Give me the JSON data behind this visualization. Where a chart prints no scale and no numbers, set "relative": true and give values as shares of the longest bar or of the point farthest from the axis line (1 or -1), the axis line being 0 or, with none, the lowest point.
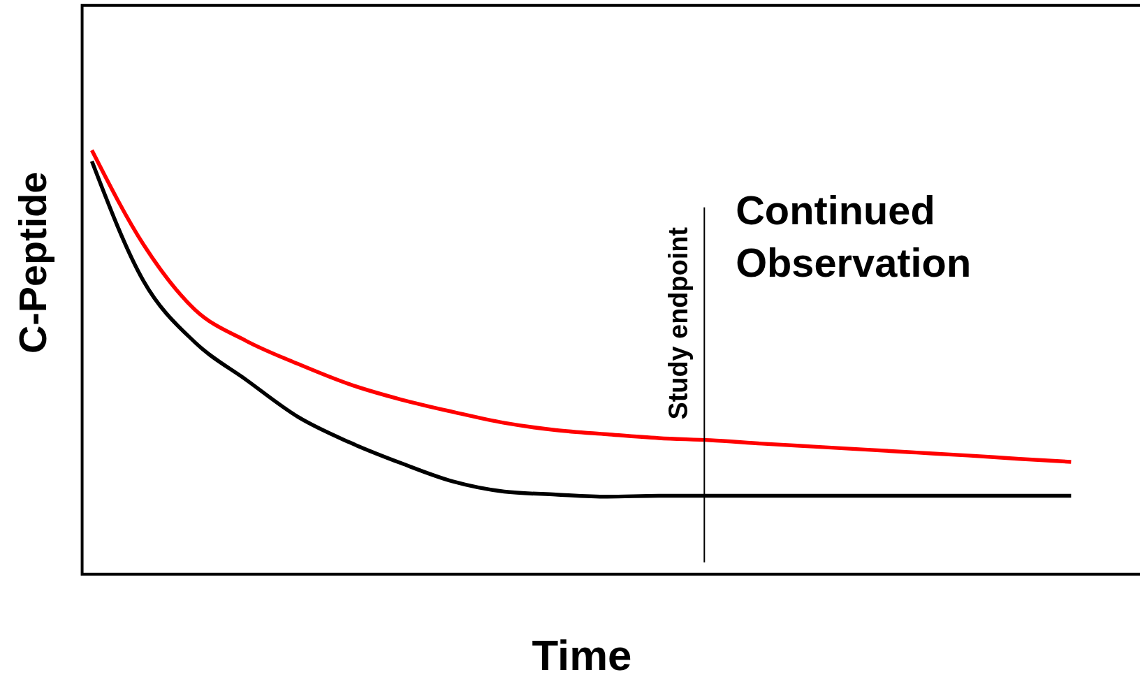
{
  "chart_data": {
    "type": "line",
    "relative": true,
    "xlabel": "Time",
    "ylabel": "C-Peptide",
    "categories": [
      null,
      null,
      null,
      null,
      null,
      null,
      null,
      null,
      null,
      null,
      null,
      null,
      null,
      null,
      null,
      null,
      null,
      null,
      null,
      null
    ],
    "series": [
      {
        "color": "#ff0000",
        "values": [
          1.0,
          0.778,
          0.624,
          0.55,
          0.496,
          0.448,
          0.412,
          0.383,
          0.357,
          0.34,
          0.33,
          0.321,
          0.316,
          0.308,
          0.301,
          0.294,
          0.287,
          0.28,
          0.272,
          0.265
        ]
      },
      {
        "color": "#000000",
        "values": [
          0.974,
          0.692,
          0.547,
          0.458,
          0.371,
          0.311,
          0.262,
          0.219,
          0.195,
          0.188,
          0.183,
          0.185,
          0.185,
          0.185,
          0.185,
          0.185,
          0.185,
          0.185,
          0.185,
          0.185
        ]
      }
    ],
    "annotations": [
      "Study endpoint",
      "Continued\nObservation"
    ],
    "grid": false,
    "tick_labels": false,
    "marker": "none",
    "line_style": "solid"
  }
}
